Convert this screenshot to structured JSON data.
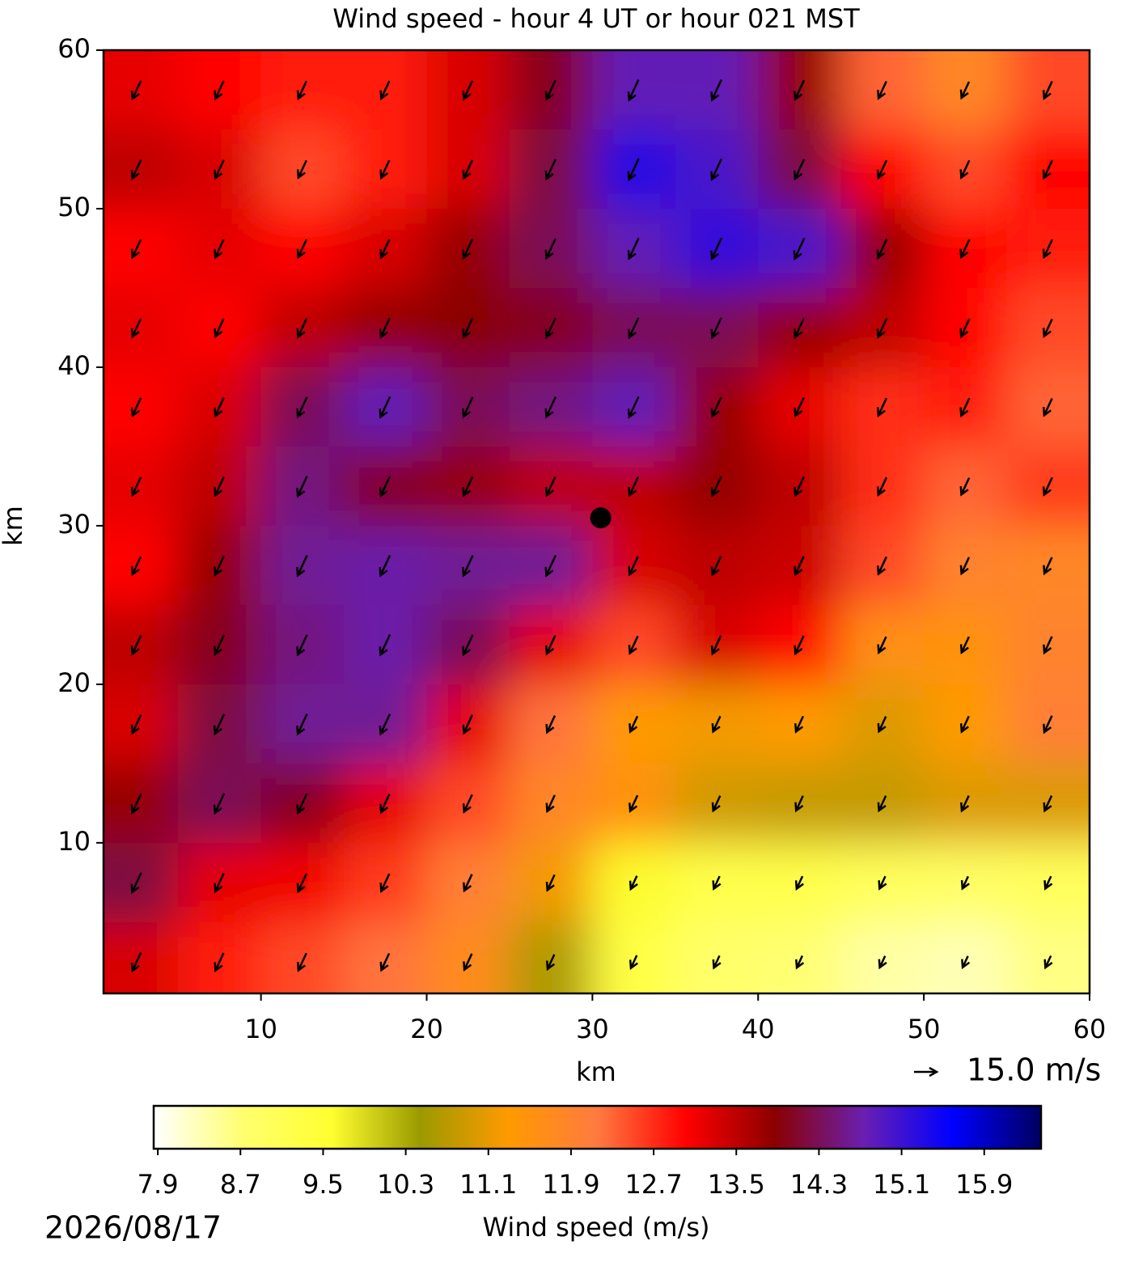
{
  "chart_data": {
    "type": "wind-field",
    "title": "Wind speed - hour 4 UT or hour 021 MST",
    "x_label": "km",
    "y_label": "km",
    "xlim": [
      0.5,
      60
    ],
    "ylim": [
      0.5,
      60
    ],
    "xticks": [
      10,
      20,
      30,
      40,
      50,
      60
    ],
    "yticks": [
      10,
      20,
      30,
      40,
      50,
      60
    ],
    "x": [
      2.5,
      7.5,
      12.5,
      17.5,
      22.5,
      27.5,
      32.5,
      37.5,
      42.5,
      47.5,
      52.5,
      57.5
    ],
    "y": [
      57.5,
      52.5,
      47.5,
      42.5,
      37.5,
      32.5,
      27.5,
      22.5,
      17.5,
      12.5,
      7.5,
      2.5
    ],
    "speed": [
      [
        13.2,
        13.0,
        12.8,
        12.8,
        13.3,
        14.0,
        14.8,
        14.8,
        13.8,
        12.3,
        11.8,
        12.5
      ],
      [
        13.5,
        13.3,
        12.5,
        12.8,
        13.3,
        14.2,
        15.3,
        15.0,
        14.2,
        13.0,
        12.5,
        13.0
      ],
      [
        13.0,
        13.2,
        13.0,
        13.3,
        13.8,
        14.3,
        14.8,
        15.2,
        15.0,
        13.8,
        13.0,
        12.8
      ],
      [
        13.2,
        13.0,
        13.5,
        13.8,
        13.9,
        14.0,
        14.3,
        14.3,
        13.8,
        13.5,
        13.0,
        12.5
      ],
      [
        13.0,
        13.3,
        14.3,
        14.8,
        14.3,
        14.5,
        14.8,
        13.8,
        13.2,
        12.7,
        12.8,
        12.3
      ],
      [
        13.2,
        13.5,
        14.5,
        14.0,
        13.8,
        13.5,
        13.5,
        13.8,
        13.5,
        12.7,
        12.3,
        12.6
      ],
      [
        13.0,
        13.8,
        14.6,
        14.7,
        14.6,
        14.6,
        13.3,
        13.5,
        13.4,
        12.5,
        11.9,
        11.8
      ],
      [
        13.5,
        14.0,
        14.5,
        14.7,
        14.3,
        13.2,
        12.5,
        13.3,
        13.0,
        11.6,
        11.5,
        11.9
      ],
      [
        13.3,
        14.2,
        14.6,
        14.6,
        13.2,
        12.2,
        11.3,
        11.2,
        11.3,
        11.0,
        11.3,
        12.0
      ],
      [
        13.8,
        14.3,
        14.0,
        13.2,
        12.5,
        11.8,
        11.5,
        10.9,
        10.8,
        10.8,
        11.0,
        11.0
      ],
      [
        14.2,
        13.2,
        13.1,
        12.6,
        12.0,
        11.2,
        9.6,
        9.2,
        9.2,
        9.0,
        8.9,
        9.0
      ],
      [
        13.3,
        12.8,
        12.5,
        12.2,
        11.7,
        10.6,
        9.3,
        8.8,
        8.7,
        8.4,
        8.3,
        8.6
      ]
    ],
    "vector_direction_deg": 245,
    "vector_key": {
      "value": 15.0,
      "label": "15.0 m/s"
    },
    "marker": {
      "x": 30.5,
      "y": 30.5
    },
    "colorbar_label": "Wind speed (m/s)",
    "clim": [
      7.86,
      16.45
    ],
    "colorbar_ticks": [
      7.9,
      8.7,
      9.5,
      10.3,
      11.1,
      11.9,
      12.7,
      13.5,
      14.3,
      15.1,
      15.9
    ],
    "colormap": [
      "#ffffff",
      "#ffff70",
      "#ffff30",
      "#9a9a00",
      "#ff9a00",
      "#ff7a40",
      "#ff0000",
      "#8b0000",
      "#6a1fb0",
      "#0000ff",
      "#000060"
    ],
    "date": "2026/08/17"
  }
}
